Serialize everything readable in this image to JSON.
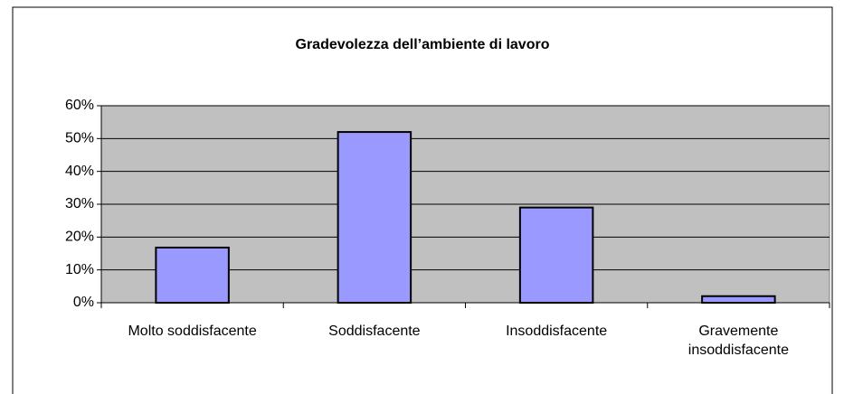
{
  "chart_data": {
    "type": "bar",
    "title": "Gradevolezza dell’ambiente di lavoro",
    "categories": [
      "Molto soddisfacente",
      "Soddisfacente",
      "Insoddisfacente",
      "Gravemente insoddisfacente"
    ],
    "values": [
      16.8,
      52,
      29,
      2
    ],
    "color": "#9999ff",
    "ylim": [
      0,
      60
    ],
    "yticks": [
      {
        "value": 0,
        "label": "0%"
      },
      {
        "value": 10,
        "label": "10%"
      },
      {
        "value": 20,
        "label": "20%"
      },
      {
        "value": 30,
        "label": "30%"
      },
      {
        "value": 40,
        "label": "40%"
      },
      {
        "value": 50,
        "label": "50%"
      },
      {
        "value": 60,
        "label": "60%"
      }
    ],
    "grid": true
  }
}
